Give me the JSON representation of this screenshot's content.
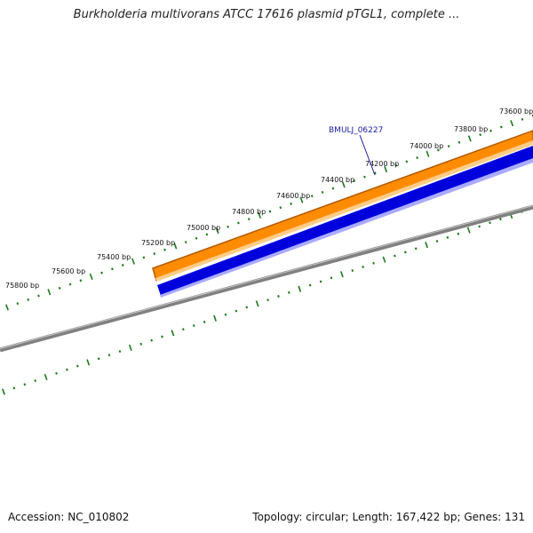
{
  "header": {
    "title": "Burkholderia multivorans ATCC 17616 plasmid pTGL1, complete ..."
  },
  "footer": {
    "accession": "Accession: NC_010802",
    "summary": "Topology: circular; Length: 167,422 bp; Genes: 131"
  },
  "map": {
    "ticks": [
      "73600 bp",
      "73800 bp",
      "74000 bp",
      "74200 bp",
      "74400 bp",
      "74600 bp",
      "74800 bp",
      "75000 bp",
      "75200 bp",
      "75400 bp",
      "75600 bp",
      "75800 bp"
    ],
    "gene": {
      "label": "BMULJ_06227"
    },
    "colors": {
      "ruler": "#1a7a1a",
      "gene_outline": "#b35a00",
      "gene_fill": "#ff8c00",
      "gene_highlight": "#ffcc88",
      "cds_fill": "#0000dd",
      "cds_highlight": "#aaaaff",
      "backbone": "#808080",
      "backbone_highlight": "#c8c8c8"
    }
  }
}
